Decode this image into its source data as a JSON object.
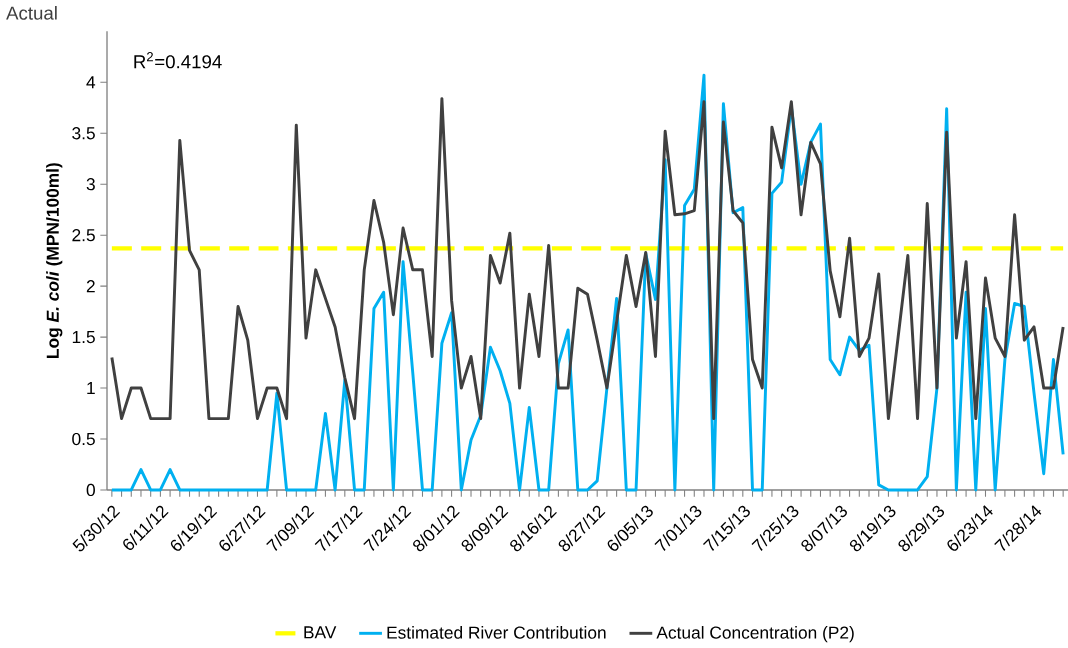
{
  "chart_data": {
    "type": "line",
    "annotations": [
      "R$^{2}$=0.4194",
      "Actual"
    ],
    "ylabel": "Log *E. coli* (MPN/100ml)",
    "categories": [
      "5/30/12",
      null,
      null,
      null,
      null,
      "6/11/12",
      null,
      null,
      null,
      null,
      "6/19/12",
      null,
      null,
      null,
      null,
      "6/27/12",
      null,
      null,
      null,
      null,
      "7/09/12",
      null,
      null,
      null,
      null,
      "7/17/12",
      null,
      null,
      null,
      null,
      "7/24/12",
      null,
      null,
      null,
      null,
      "8/01/12",
      null,
      null,
      null,
      null,
      "8/09/12",
      null,
      null,
      null,
      null,
      "8/16/12",
      null,
      null,
      null,
      null,
      "8/27/12",
      null,
      null,
      null,
      null,
      "6/05/13",
      null,
      null,
      null,
      null,
      "7/01/13",
      null,
      null,
      null,
      null,
      "7/15/13",
      null,
      null,
      null,
      null,
      "7/25/13",
      null,
      null,
      null,
      null,
      "8/07/13",
      null,
      null,
      null,
      null,
      "8/19/13",
      null,
      null,
      null,
      null,
      "8/29/13",
      null,
      null,
      null,
      null,
      "6/23/14",
      null,
      null,
      null,
      null,
      "7/28/14",
      null,
      null,
      null
    ],
    "ylim": [
      0,
      4.5
    ],
    "yticks": [
      0,
      0.5,
      1,
      1.5,
      2,
      2.5,
      3,
      3.5,
      4
    ],
    "legend": "bottom",
    "series": [
      {
        "name": "BAV",
        "color": "#ffff00",
        "line_style": "dashed",
        "values": [
          2.37,
          2.37,
          2.37,
          2.37,
          2.37,
          2.37,
          2.37,
          2.37,
          2.37,
          2.37,
          2.37,
          2.37,
          2.37,
          2.37,
          2.37,
          2.37,
          2.37,
          2.37,
          2.37,
          2.37,
          2.37,
          2.37,
          2.37,
          2.37,
          2.37,
          2.37,
          2.37,
          2.37,
          2.37,
          2.37,
          2.37,
          2.37,
          2.37,
          2.37,
          2.37,
          2.37,
          2.37,
          2.37,
          2.37,
          2.37,
          2.37,
          2.37,
          2.37,
          2.37,
          2.37,
          2.37,
          2.37,
          2.37,
          2.37,
          2.37,
          2.37,
          2.37,
          2.37,
          2.37,
          2.37,
          2.37,
          2.37,
          2.37,
          2.37,
          2.37,
          2.37,
          2.37,
          2.37,
          2.37,
          2.37,
          2.37,
          2.37,
          2.37,
          2.37,
          2.37,
          2.37,
          2.37,
          2.37,
          2.37,
          2.37,
          2.37,
          2.37,
          2.37,
          2.37,
          2.37,
          2.37,
          2.37,
          2.37,
          2.37,
          2.37,
          2.37,
          2.37,
          2.37,
          2.37,
          2.37,
          2.37,
          2.37,
          2.37,
          2.37,
          2.37,
          2.37,
          2.37,
          2.37,
          2.37
        ]
      },
      {
        "name": "Estimated River Contribution",
        "color": "#00b0f0",
        "values": [
          0,
          0,
          0,
          0.2,
          0,
          0,
          0.2,
          0,
          0,
          0,
          0,
          0,
          0,
          0,
          0,
          0,
          0,
          0.95,
          0,
          0,
          0,
          0,
          0.75,
          0,
          1.08,
          0,
          0,
          1.78,
          1.94,
          0,
          2.24,
          1.15,
          0,
          0,
          1.44,
          1.74,
          0,
          0.49,
          0.73,
          1.4,
          1.17,
          0.85,
          0,
          0.81,
          0,
          0,
          1.24,
          1.57,
          0,
          0,
          0.09,
          1.0,
          1.88,
          0,
          0,
          2.32,
          1.87,
          3.24,
          0,
          2.79,
          2.95,
          4.07,
          0,
          3.79,
          2.72,
          2.77,
          0,
          0,
          2.91,
          3.02,
          3.76,
          3.0,
          3.41,
          3.59,
          1.28,
          1.13,
          1.5,
          1.37,
          1.42,
          0.05,
          0,
          0,
          0,
          0,
          0.13,
          1.0,
          3.74,
          0,
          1.94,
          0,
          1.78,
          0,
          1.28,
          1.83,
          1.8,
          0.95,
          0.16,
          1.28,
          0.35
        ]
      },
      {
        "name": "Actual Concentration (P2)",
        "color": "#404040",
        "values": [
          1.3,
          0.7,
          1.0,
          1.0,
          0.7,
          0.7,
          0.7,
          3.43,
          2.35,
          2.16,
          0.7,
          0.7,
          0.7,
          1.8,
          1.47,
          0.7,
          1.0,
          1.0,
          0.7,
          3.58,
          1.49,
          2.16,
          1.88,
          1.6,
          1.1,
          0.7,
          2.16,
          2.84,
          2.43,
          1.72,
          2.57,
          2.16,
          2.16,
          1.31,
          3.84,
          1.86,
          1.0,
          1.31,
          0.7,
          2.3,
          2.03,
          2.52,
          1.0,
          1.92,
          1.31,
          2.4,
          1.0,
          1.0,
          1.98,
          1.92,
          1.47,
          1.0,
          1.65,
          2.3,
          1.8,
          2.33,
          1.31,
          3.52,
          2.7,
          2.71,
          2.74,
          3.81,
          0.7,
          3.61,
          2.74,
          2.62,
          1.28,
          1.0,
          3.56,
          3.16,
          3.81,
          2.7,
          3.41,
          3.2,
          2.15,
          1.7,
          2.47,
          1.31,
          1.49,
          2.12,
          0.7,
          1.5,
          2.3,
          0.7,
          2.81,
          1.0,
          3.51,
          1.49,
          2.24,
          0.7,
          2.08,
          1.49,
          1.31,
          2.7,
          1.47,
          1.6,
          1.0,
          1.0,
          1.6
        ]
      }
    ]
  }
}
